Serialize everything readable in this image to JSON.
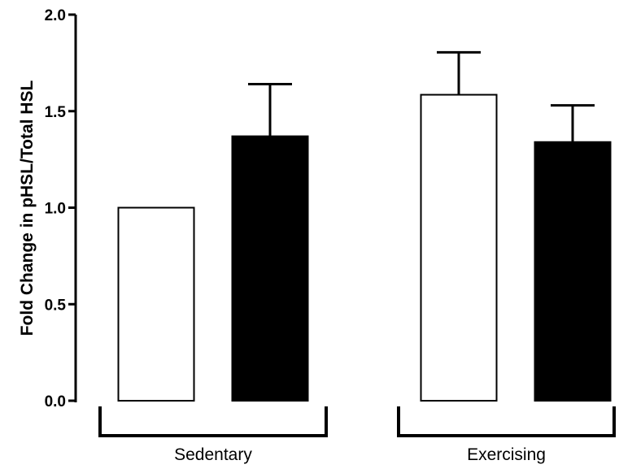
{
  "chart_data": {
    "type": "bar",
    "title": "",
    "xlabel": "",
    "ylabel": "Fold Change in pHSL/Total HSL",
    "ylim": [
      0,
      2.0
    ],
    "yticks": [
      "0.0",
      "0.5",
      "1.0",
      "1.5",
      "2.0"
    ],
    "grid": false,
    "groups": [
      {
        "label": "Sedentary",
        "bars": [
          {
            "value": 1.0,
            "error": 0.0,
            "fill": "#ffffff"
          },
          {
            "value": 1.37,
            "error": 0.27,
            "fill": "#000000"
          }
        ]
      },
      {
        "label": "Exercising",
        "bars": [
          {
            "value": 1.585,
            "error": 0.22,
            "fill": "#ffffff"
          },
          {
            "value": 1.34,
            "error": 0.19,
            "fill": "#000000"
          }
        ]
      }
    ]
  }
}
